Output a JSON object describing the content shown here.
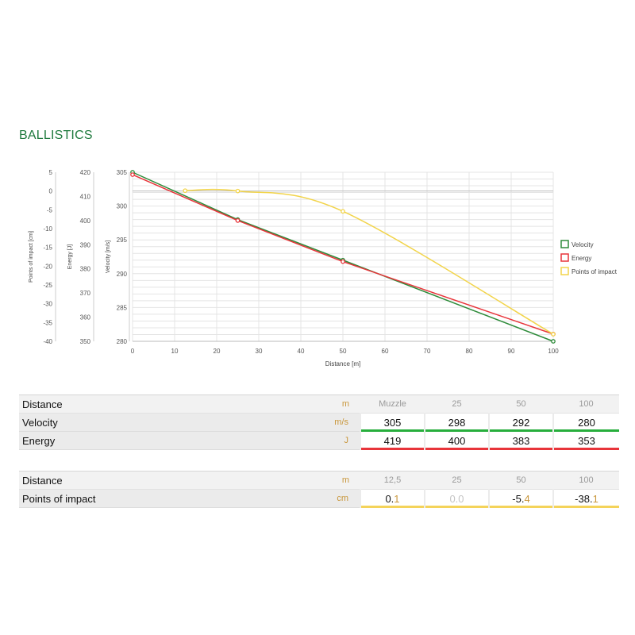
{
  "page": {
    "title": "BALLISTICS"
  },
  "colors": {
    "velocity": "#2e8b3a",
    "energy": "#e8343a",
    "poi": "#f2d44a",
    "title": "#1f7a3e",
    "unit": "#c9973c"
  },
  "chart_data": {
    "type": "line",
    "xlabel": "Distance [m]",
    "xlim": [
      0,
      100
    ],
    "xticks": [
      0,
      10,
      20,
      30,
      40,
      50,
      60,
      70,
      80,
      90,
      100
    ],
    "axes": {
      "velocity": {
        "label": "Velocity [m/s]",
        "ylim": [
          280,
          305
        ],
        "ticks": [
          280,
          285,
          290,
          295,
          300,
          305
        ]
      },
      "energy": {
        "label": "Energy [J]",
        "ylim": [
          350,
          420
        ],
        "ticks": [
          350,
          360,
          370,
          380,
          390,
          400,
          410,
          420
        ]
      },
      "poi": {
        "label": "Points of impact [cm]",
        "ylim": [
          -40,
          5
        ],
        "ticks": [
          -40,
          -35,
          -30,
          -25,
          -20,
          -15,
          -10,
          -5,
          0,
          5
        ]
      }
    },
    "series": [
      {
        "name": "Velocity",
        "axis": "velocity",
        "color": "#2e8b3a",
        "x": [
          0,
          25,
          50,
          100
        ],
        "y": [
          305,
          298,
          292,
          280
        ]
      },
      {
        "name": "Energy",
        "axis": "energy",
        "color": "#e8343a",
        "x": [
          0,
          25,
          50,
          100
        ],
        "y": [
          419,
          400,
          383,
          353
        ]
      },
      {
        "name": "Points of impact",
        "axis": "poi",
        "color": "#f2d44a",
        "x": [
          12.5,
          25,
          50,
          100
        ],
        "y": [
          0.1,
          0.0,
          -5.4,
          -38.1
        ]
      }
    ],
    "legend": "right"
  },
  "table1": {
    "header": {
      "label": "Distance",
      "unit": "m",
      "cols": [
        "Muzzle",
        "25",
        "50",
        "100"
      ]
    },
    "rows": [
      {
        "label": "Velocity",
        "unit": "m/s",
        "values": [
          "305",
          "298",
          "292",
          "280"
        ]
      },
      {
        "label": "Energy",
        "unit": "J",
        "values": [
          "419",
          "400",
          "383",
          "353"
        ]
      }
    ]
  },
  "table2": {
    "header": {
      "label": "Distance",
      "unit": "m",
      "cols": [
        "12,5",
        "25",
        "50",
        "100"
      ]
    },
    "row": {
      "label": "Points of impact",
      "unit": "cm",
      "values": [
        {
          "int": "0.",
          "frac": "1"
        },
        {
          "int": "0.0",
          "frac": ""
        },
        {
          "int": "-5.",
          "frac": "4"
        },
        {
          "int": "-38.",
          "frac": "1"
        }
      ]
    }
  }
}
